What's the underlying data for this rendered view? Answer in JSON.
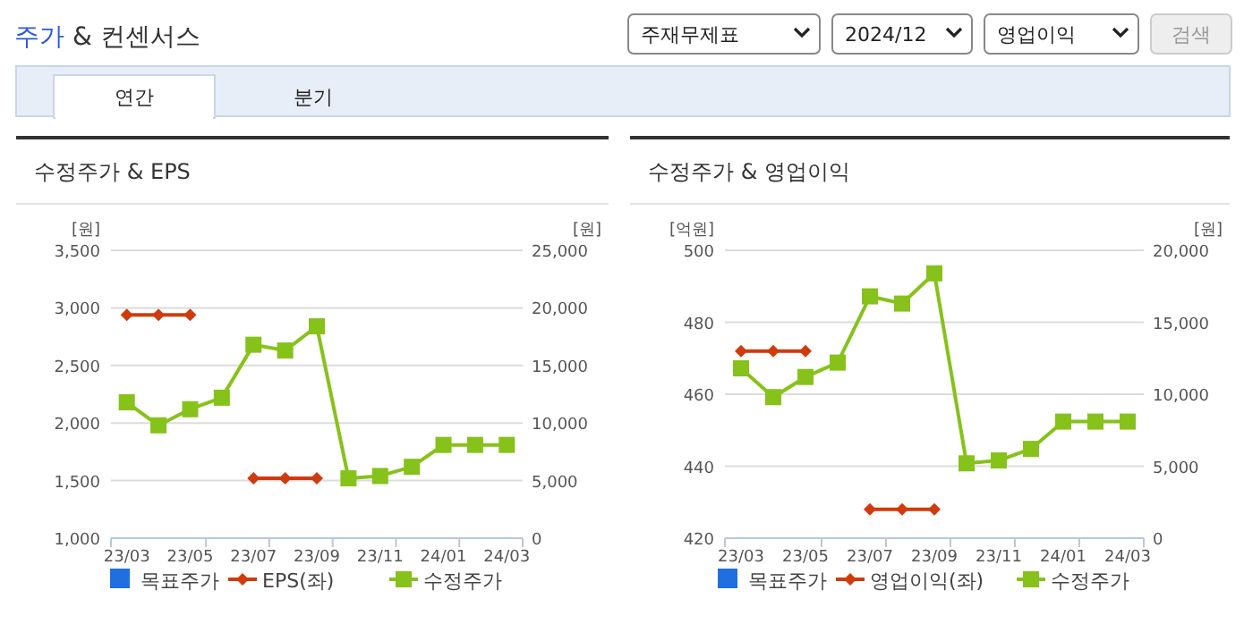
{
  "chart_data": [
    {
      "type": "line",
      "title": "수정주가 & EPS",
      "ylabel": "[원]",
      "y2label": "[원]",
      "annotations": [
        "주가 & 컨센서스",
        "주재무제표",
        "2024/12",
        "영업이익",
        "검색",
        "연간",
        "분기"
      ],
      "categories": [
        "23/03",
        null,
        "23/05",
        null,
        "23/07",
        null,
        "23/09",
        null,
        "23/11",
        null,
        "24/01",
        null,
        "24/03"
      ],
      "series": [
        {
          "name": "목표주가",
          "color": "#1f6fe0",
          "marker": "square",
          "values": [
            null,
            null,
            null,
            null,
            null,
            null,
            null,
            null,
            null,
            null,
            null,
            null,
            null
          ]
        },
        {
          "name": "EPS(좌)",
          "color": "#d13b0b",
          "marker": "diamond",
          "values": [
            2940,
            2940,
            2940,
            null,
            1520,
            1520,
            1520,
            null,
            null,
            null,
            null,
            null,
            null
          ]
        },
        {
          "name": "수정주가",
          "color": "#86c21a",
          "marker": "square",
          "axis": "y2",
          "values": [
            11800,
            9800,
            11200,
            12200,
            16800,
            16300,
            18400,
            5200,
            5400,
            6200,
            8100,
            8100,
            8100
          ]
        }
      ],
      "ylim": [
        1000,
        3500
      ],
      "yticks": [
        {
          "value": 1000,
          "label": "1,000"
        },
        {
          "value": 1500,
          "label": "1,500"
        },
        {
          "value": 2000,
          "label": "2,000"
        },
        {
          "value": 2500,
          "label": "2,500"
        },
        {
          "value": 3000,
          "label": "3,000"
        },
        {
          "value": 3500,
          "label": "3,500"
        }
      ],
      "y2lim": [
        0,
        25000
      ],
      "y2ticks": [
        0,
        {
          "value": 5000,
          "label": "5,000"
        },
        {
          "value": 10000,
          "label": "10,000"
        },
        {
          "value": 15000,
          "label": "15,000"
        },
        {
          "value": 20000,
          "label": "20,000"
        },
        {
          "value": 25000,
          "label": "25,000"
        }
      ],
      "grid": "y",
      "legend": "bottom"
    },
    {
      "type": "line",
      "title": "수정주가 & 영업이익",
      "ylabel": "[억원]",
      "y2label": "[원]",
      "categories": [
        "23/03",
        null,
        "23/05",
        null,
        "23/07",
        null,
        "23/09",
        null,
        "23/11",
        null,
        "24/01",
        null,
        "24/03"
      ],
      "series": [
        {
          "name": "목표주가",
          "color": "#1f6fe0",
          "marker": "square",
          "values": [
            null,
            null,
            null,
            null,
            null,
            null,
            null,
            null,
            null,
            null,
            null,
            null,
            null
          ]
        },
        {
          "name": "영업이익(좌)",
          "color": "#d13b0b",
          "marker": "diamond",
          "values": [
            472,
            472,
            472,
            null,
            428,
            428,
            428,
            null,
            null,
            null,
            null,
            null,
            null
          ]
        },
        {
          "name": "수정주가",
          "color": "#86c21a",
          "marker": "square",
          "axis": "y2",
          "values": [
            11800,
            9800,
            11200,
            12200,
            16800,
            16300,
            18400,
            5200,
            5400,
            6200,
            8100,
            8100,
            8100
          ]
        }
      ],
      "ylim": [
        420,
        500
      ],
      "yticks": [
        420,
        440,
        460,
        480,
        500
      ],
      "y2lim": [
        0,
        20000
      ],
      "y2ticks": [
        0,
        {
          "value": 5000,
          "label": "5,000"
        },
        {
          "value": 10000,
          "label": "10,000"
        },
        {
          "value": 15000,
          "label": "15,000"
        },
        {
          "value": 20000,
          "label": "20,000"
        }
      ],
      "grid": "y",
      "legend": "bottom"
    }
  ]
}
